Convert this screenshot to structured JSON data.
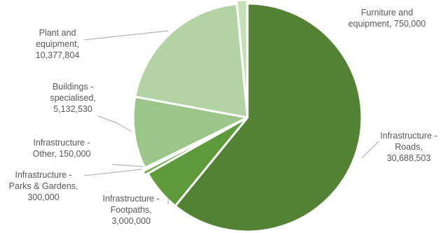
{
  "chart_data": {
    "type": "pie",
    "title": "",
    "categories": [
      "Infrastructure - Roads",
      "Infrastructure - Footpaths",
      "Infrastructure - Parks & Gardens",
      "Infrastructure - Other",
      "Buildings - specialised",
      "Plant and equipment",
      "Furniture and equipment"
    ],
    "values": [
      30688503,
      3000000,
      300000,
      150000,
      5132530,
      10377804,
      750000
    ],
    "colors": [
      "#548235",
      "#5e9a3c",
      "#70ad47",
      "#92c07a",
      "#9cc589",
      "#b3d3a4",
      "#c5e0b4"
    ],
    "labels": [
      [
        "Infrastructure -",
        "Roads,",
        "30,688,503"
      ],
      [
        "Infrastructure -",
        "Footpaths,",
        "3,000,000"
      ],
      [
        "Infrastructure -",
        "Parks & Gardens,",
        "300,000"
      ],
      [
        "Infrastructure -",
        "Other, 150,000"
      ],
      [
        "Buildings -",
        "specialised,",
        "5,132,530"
      ],
      [
        "Plant and",
        "equipment,",
        "10,377,804"
      ],
      [
        "Furniture and",
        "equipment, 750,000"
      ]
    ],
    "legend": "none"
  }
}
